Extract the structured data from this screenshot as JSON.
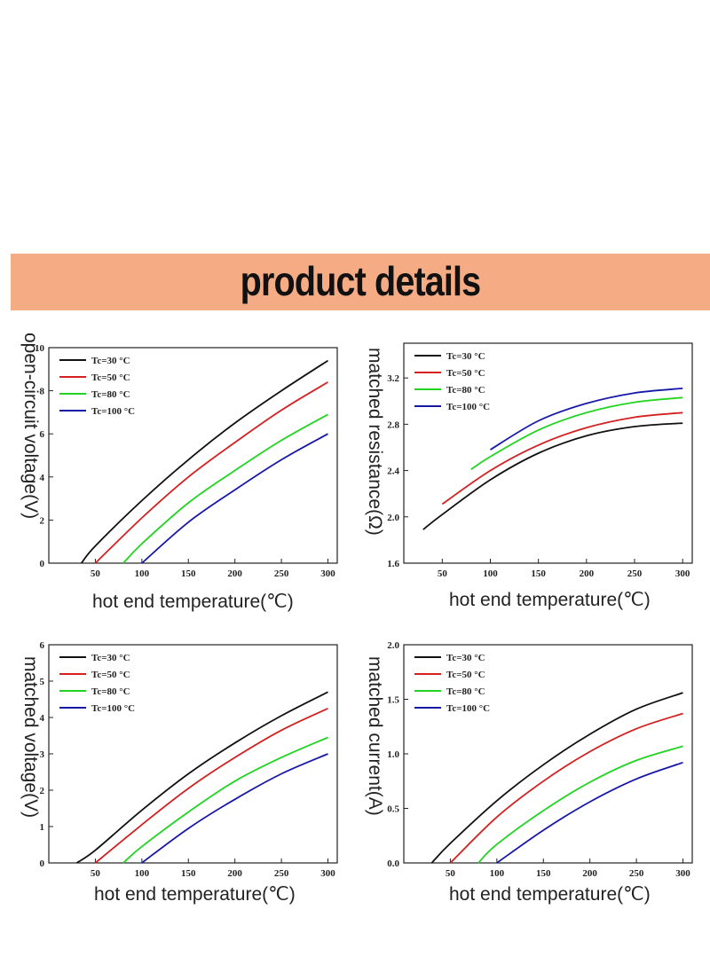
{
  "banner": {
    "title": "product details"
  },
  "chart_data": [
    {
      "type": "line",
      "title": "",
      "xlabel": "hot end temperature(℃)",
      "ylabel": "open-circuit voltage(V)",
      "xlim": [
        0,
        310
      ],
      "ylim": [
        0,
        10
      ],
      "xticks": [
        50,
        100,
        150,
        200,
        250,
        300
      ],
      "yticks": [
        0,
        2,
        4,
        6,
        8,
        10
      ],
      "grid": false,
      "legend_position": "top-left",
      "series": [
        {
          "name": "Tc=30 °C",
          "color": "#111111",
          "x": [
            35,
            50,
            100,
            150,
            200,
            250,
            300
          ],
          "y": [
            0,
            0.8,
            2.9,
            4.8,
            6.5,
            8.0,
            9.4
          ]
        },
        {
          "name": "Tc=50 °C",
          "color": "#d42020",
          "x": [
            50,
            100,
            150,
            200,
            250,
            300
          ],
          "y": [
            0,
            2.1,
            4.0,
            5.6,
            7.1,
            8.4
          ]
        },
        {
          "name": "Tc=80 °C",
          "color": "#22d422",
          "x": [
            80,
            100,
            150,
            200,
            250,
            300
          ],
          "y": [
            0,
            0.9,
            2.8,
            4.3,
            5.7,
            6.9
          ]
        },
        {
          "name": "Tc=100 °C",
          "color": "#1818a8",
          "x": [
            100,
            150,
            200,
            250,
            300
          ],
          "y": [
            0,
            1.9,
            3.4,
            4.8,
            6.0
          ]
        }
      ]
    },
    {
      "type": "line",
      "title": "",
      "xlabel": "hot end temperature(℃)",
      "ylabel": "matched resistance(Ω)",
      "xlim": [
        10,
        310
      ],
      "ylim": [
        1.6,
        3.5
      ],
      "xticks": [
        50,
        100,
        150,
        200,
        250,
        300
      ],
      "yticks": [
        1.6,
        2.0,
        2.4,
        2.8,
        3.2
      ],
      "ytick_labels": [
        "1.6",
        "2.0",
        "2.4",
        "2.8",
        "3.2"
      ],
      "grid": false,
      "legend_position": "top-left",
      "series": [
        {
          "name": "Tc=30 °C",
          "color": "#111111",
          "x": [
            30,
            50,
            100,
            150,
            200,
            250,
            300
          ],
          "y": [
            1.89,
            2.02,
            2.32,
            2.55,
            2.7,
            2.78,
            2.81
          ]
        },
        {
          "name": "Tc=50 °C",
          "color": "#d42020",
          "x": [
            50,
            100,
            150,
            200,
            250,
            300
          ],
          "y": [
            2.11,
            2.4,
            2.62,
            2.77,
            2.86,
            2.9
          ]
        },
        {
          "name": "Tc=80 °C",
          "color": "#22d422",
          "x": [
            80,
            100,
            150,
            200,
            250,
            300
          ],
          "y": [
            2.41,
            2.52,
            2.75,
            2.9,
            2.99,
            3.03
          ]
        },
        {
          "name": "Tc=100 °C",
          "color": "#1818a8",
          "x": [
            100,
            150,
            200,
            250,
            300
          ],
          "y": [
            2.58,
            2.83,
            2.98,
            3.07,
            3.11
          ]
        }
      ]
    },
    {
      "type": "line",
      "title": "",
      "xlabel": "hot end temperature(℃)",
      "ylabel": "matched voltage(V)",
      "xlim": [
        0,
        310
      ],
      "ylim": [
        0,
        6
      ],
      "xticks": [
        50,
        100,
        150,
        200,
        250,
        300
      ],
      "yticks": [
        0,
        1,
        2,
        3,
        4,
        5,
        6
      ],
      "grid": false,
      "legend_position": "top-left",
      "series": [
        {
          "name": "Tc=30 °C",
          "color": "#111111",
          "x": [
            30,
            50,
            100,
            150,
            200,
            250,
            300
          ],
          "y": [
            0,
            0.35,
            1.45,
            2.45,
            3.3,
            4.05,
            4.7
          ]
        },
        {
          "name": "Tc=50 °C",
          "color": "#d42020",
          "x": [
            50,
            100,
            150,
            200,
            250,
            300
          ],
          "y": [
            0,
            1.05,
            2.05,
            2.9,
            3.65,
            4.25
          ]
        },
        {
          "name": "Tc=80 °C",
          "color": "#22d422",
          "x": [
            80,
            100,
            150,
            200,
            250,
            300
          ],
          "y": [
            0,
            0.45,
            1.4,
            2.25,
            2.9,
            3.45
          ]
        },
        {
          "name": "Tc=100 °C",
          "color": "#1818a8",
          "x": [
            100,
            150,
            200,
            250,
            300
          ],
          "y": [
            0,
            0.95,
            1.75,
            2.45,
            3.0
          ]
        }
      ]
    },
    {
      "type": "line",
      "title": "",
      "xlabel": "hot end temperature(℃)",
      "ylabel": "matched current(A)",
      "xlim": [
        0,
        310
      ],
      "ylim": [
        0,
        2.0
      ],
      "xticks": [
        50,
        100,
        150,
        200,
        250,
        300
      ],
      "yticks": [
        0,
        0.5,
        1.0,
        1.5,
        2.0
      ],
      "ytick_labels": [
        "0.0",
        "0.5",
        "1.0",
        "1.5",
        "2.0"
      ],
      "grid": false,
      "legend_position": "top-left",
      "series": [
        {
          "name": "Tc=30 °C",
          "color": "#111111",
          "x": [
            30,
            50,
            100,
            150,
            200,
            250,
            300
          ],
          "y": [
            0,
            0.18,
            0.57,
            0.9,
            1.18,
            1.41,
            1.56
          ]
        },
        {
          "name": "Tc=50 °C",
          "color": "#d42020",
          "x": [
            50,
            100,
            150,
            200,
            250,
            300
          ],
          "y": [
            0,
            0.42,
            0.75,
            1.02,
            1.23,
            1.37
          ]
        },
        {
          "name": "Tc=80 °C",
          "color": "#22d422",
          "x": [
            80,
            100,
            150,
            200,
            250,
            300
          ],
          "y": [
            0,
            0.17,
            0.48,
            0.74,
            0.94,
            1.07
          ]
        },
        {
          "name": "Tc=100 °C",
          "color": "#1818a8",
          "x": [
            100,
            150,
            200,
            250,
            300
          ],
          "y": [
            0,
            0.3,
            0.56,
            0.77,
            0.92
          ]
        }
      ]
    }
  ]
}
